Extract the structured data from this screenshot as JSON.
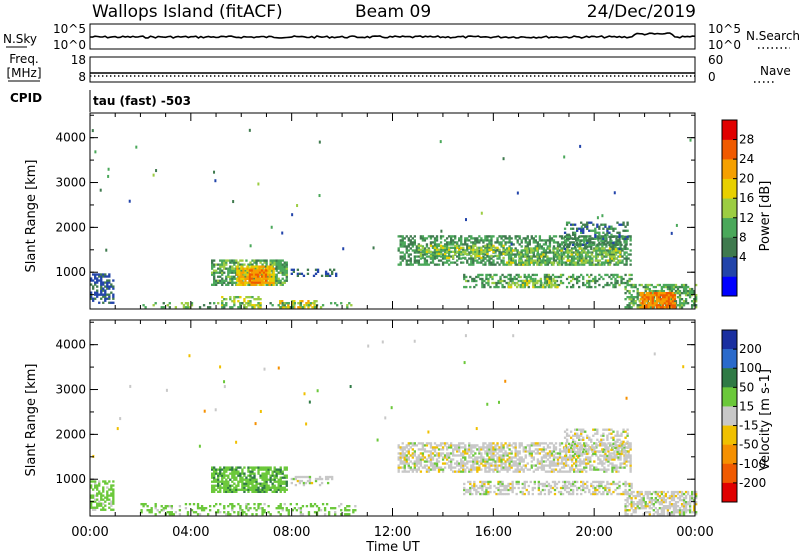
{
  "header": {
    "station": "Wallops Island (fitACF)",
    "beam": "Beam 09",
    "date": "24/Dec/2019"
  },
  "noise_panel": {
    "left_label": "N.Sky",
    "right_label": "N.Search",
    "left_ticks": [
      "10^5",
      "10^0"
    ],
    "right_ticks": [
      "10^5",
      "10^0"
    ]
  },
  "freq_panel": {
    "left_label_line1": "Freq.",
    "left_label_line2": "[MHz]",
    "right_label": "Nave",
    "left_ticks": [
      "18",
      "8"
    ],
    "right_ticks": [
      "60",
      "0"
    ]
  },
  "cpid": {
    "label": "CPID",
    "value": "tau (fast) -503"
  },
  "x_axis": {
    "label": "Time UT",
    "tick_labels": [
      "00:00",
      "04:00",
      "08:00",
      "12:00",
      "16:00",
      "20:00",
      "00:00"
    ],
    "range_hours": [
      0,
      24
    ]
  },
  "colors": {
    "power_scale": [
      "#0000ff",
      "#2244aa",
      "#3f7a4e",
      "#4aa85a",
      "#9ccd42",
      "#e8d000",
      "#f5a000",
      "#f05a00",
      "#e00000"
    ],
    "velocity_scale": [
      "#1a2fa0",
      "#2a6acb",
      "#2f7a45",
      "#6bc83a",
      "#c8c8c8",
      "#f0c000",
      "#f59000",
      "#f05a00",
      "#e00000"
    ]
  },
  "chart_data": [
    {
      "type": "heatmap",
      "name": "power",
      "ylabel": "Slant Range [km]",
      "ylim": [
        180,
        4550
      ],
      "yticks": [
        1000,
        2000,
        3000,
        4000
      ],
      "colorbar_label": "Power [dB]",
      "colorbar_ticks": [
        "28",
        "24",
        "20",
        "16",
        "12",
        "8",
        "4"
      ],
      "patches": [
        {
          "t0": 0.0,
          "t1": 0.9,
          "r0": 300,
          "r1": 950,
          "value_db": 8,
          "density": 0.55
        },
        {
          "t0": 4.8,
          "t1": 7.8,
          "r0": 700,
          "r1": 1250,
          "value_db": 14,
          "density": 0.7
        },
        {
          "t0": 5.8,
          "t1": 7.3,
          "r0": 700,
          "r1": 1150,
          "value_db": 24,
          "density": 0.75
        },
        {
          "t0": 6.3,
          "t1": 7.0,
          "r0": 750,
          "r1": 1050,
          "value_db": 28,
          "density": 0.8
        },
        {
          "t0": 7.8,
          "t1": 9.8,
          "r0": 900,
          "r1": 1050,
          "value_db": 8,
          "density": 0.35
        },
        {
          "t0": 5.2,
          "t1": 6.8,
          "r0": 200,
          "r1": 450,
          "value_db": 18,
          "density": 0.5
        },
        {
          "t0": 7.5,
          "t1": 9.0,
          "r0": 200,
          "r1": 350,
          "value_db": 22,
          "density": 0.55
        },
        {
          "t0": 2.0,
          "t1": 10.5,
          "r0": 200,
          "r1": 300,
          "value_db": 14,
          "density": 0.25
        },
        {
          "t0": 12.2,
          "t1": 21.4,
          "r0": 1150,
          "r1": 1800,
          "value_db": 12,
          "density": 0.55
        },
        {
          "t0": 13.0,
          "t1": 16.5,
          "r0": 1300,
          "r1": 1600,
          "value_db": 18,
          "density": 0.45
        },
        {
          "t0": 16.5,
          "t1": 21.0,
          "r0": 1150,
          "r1": 1550,
          "value_db": 17,
          "density": 0.45
        },
        {
          "t0": 18.8,
          "t1": 21.3,
          "r0": 1500,
          "r1": 2100,
          "value_db": 10,
          "density": 0.35
        },
        {
          "t0": 14.8,
          "t1": 21.5,
          "r0": 650,
          "r1": 950,
          "value_db": 13,
          "density": 0.45
        },
        {
          "t0": 16.5,
          "t1": 18.5,
          "r0": 650,
          "r1": 850,
          "value_db": 18,
          "density": 0.4
        },
        {
          "t0": 21.2,
          "t1": 24.0,
          "r0": 200,
          "r1": 700,
          "value_db": 14,
          "density": 0.55
        },
        {
          "t0": 21.8,
          "t1": 23.2,
          "r0": 200,
          "r1": 550,
          "value_db": 28,
          "density": 0.85
        }
      ]
    },
    {
      "type": "heatmap",
      "name": "velocity",
      "ylabel": "Slant Range [km]",
      "ylim": [
        180,
        4550
      ],
      "yticks": [
        1000,
        2000,
        3000,
        4000
      ],
      "colorbar_label": "Velocity [m s-1]",
      "colorbar_ticks": [
        "200",
        "100",
        "50",
        "15",
        "-15",
        "-50",
        "-100",
        "-200"
      ],
      "patches": [
        {
          "t0": 0.0,
          "t1": 0.9,
          "r0": 300,
          "r1": 950,
          "value": 30,
          "density": 0.5
        },
        {
          "t0": 4.8,
          "t1": 7.8,
          "r0": 700,
          "r1": 1250,
          "value": 40,
          "density": 0.75
        },
        {
          "t0": 7.8,
          "t1": 9.8,
          "r0": 850,
          "r1": 1050,
          "value": 0,
          "density": 0.35
        },
        {
          "t0": 2.0,
          "t1": 10.5,
          "r0": 200,
          "r1": 450,
          "value": 30,
          "density": 0.3
        },
        {
          "t0": 12.2,
          "t1": 21.4,
          "r0": 1150,
          "r1": 1800,
          "value": 0,
          "density": 0.6
        },
        {
          "t0": 18.8,
          "t1": 21.3,
          "r0": 1500,
          "r1": 2100,
          "value": 0,
          "density": 0.35
        },
        {
          "t0": 14.8,
          "t1": 21.5,
          "r0": 650,
          "r1": 950,
          "value": 0,
          "density": 0.5
        },
        {
          "t0": 21.2,
          "t1": 24.0,
          "r0": 200,
          "r1": 700,
          "value": 0,
          "density": 0.65
        }
      ]
    }
  ]
}
